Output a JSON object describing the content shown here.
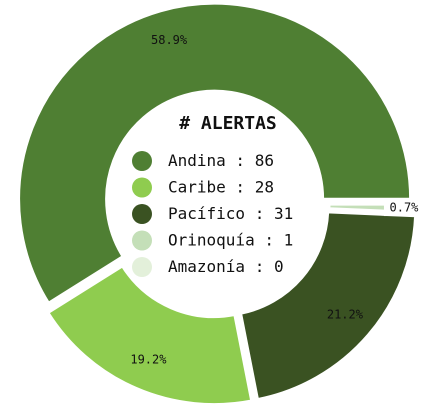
{
  "chart_data": {
    "type": "donut",
    "title": "# ALERTAS",
    "categories": [
      "Andina",
      "Caribe",
      "Pacífico",
      "Orinoquía",
      "Amazonía"
    ],
    "values": [
      86,
      28,
      31,
      1,
      0
    ],
    "value_labels": [
      "58.9%",
      "19.2%",
      "21.2%",
      "0.7%",
      null
    ],
    "colors": [
      "#4f7f33",
      "#8fcc4f",
      "#3a5222",
      "#c4dfb8",
      "#e3f0da"
    ],
    "legend_separator": " : "
  }
}
